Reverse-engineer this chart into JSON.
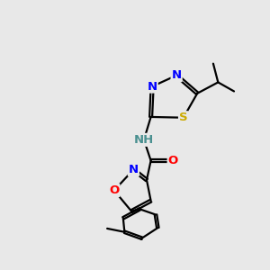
{
  "bg_color": "#e8e8e8",
  "bond_color": "#000000",
  "bond_width": 1.6,
  "atoms": {
    "N_color": "#0000ff",
    "O_color": "#ff0000",
    "S_color": "#ccaa00",
    "H_color": "#4a9090",
    "C_color": "#000000"
  },
  "xlim": [
    0,
    10
  ],
  "ylim": [
    0,
    10
  ]
}
